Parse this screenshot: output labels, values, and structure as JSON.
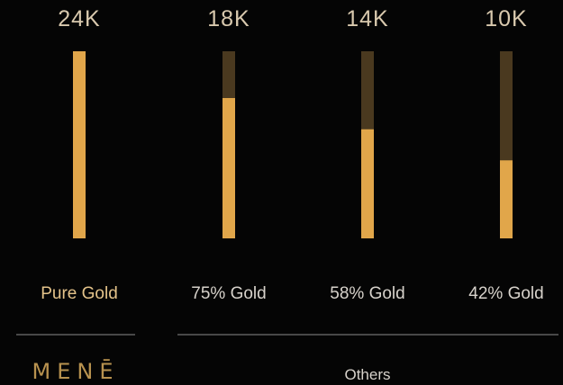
{
  "colors": {
    "background": "#050505",
    "gold": "#e1a64a",
    "gold_dark": "#4a391f",
    "karat_text": "#d9c9ae",
    "pure_text": "#e4c38a",
    "label_text": "#d7d2cb",
    "brand_text": "#b8924f"
  },
  "chart_data": {
    "type": "bar",
    "categories": [
      "24K",
      "18K",
      "14K",
      "10K"
    ],
    "descriptions": [
      "Pure Gold",
      "75% Gold",
      "58% Gold",
      "42% Gold"
    ],
    "values": [
      100,
      75,
      58.3,
      41.7
    ],
    "ylim": [
      0,
      100
    ],
    "groups": [
      {
        "label": "MENĒ",
        "members": [
          "24K"
        ]
      },
      {
        "label": "Others",
        "members": [
          "18K",
          "14K",
          "10K"
        ]
      }
    ]
  }
}
